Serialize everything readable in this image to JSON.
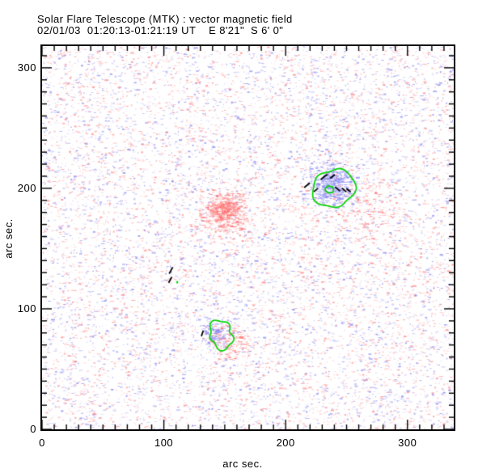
{
  "chart_data": {
    "type": "heatmap",
    "title": "Solar Flare Telescope (MTK) : vector magnetic field",
    "subtitle": "02/01/03  01:20:13-01:21:19 UT    E 8'21\"  S 6' 0\"",
    "xlabel": "arc sec.",
    "ylabel": "arc sec.",
    "xlim": [
      0,
      338
    ],
    "ylim": [
      0,
      318
    ],
    "xticks": [
      0,
      100,
      200,
      300
    ],
    "yticks": [
      0,
      100,
      200,
      300
    ],
    "minor_tick_step": 10,
    "grid": false,
    "frame_color": "#000000",
    "positive_color": "#ff8c8c",
    "positive_strong_color": "#ff6a6a",
    "negative_color": "#8c8cf2",
    "contour_color": "#00d400",
    "dash_color": "#000000",
    "noise": {
      "seed": 1337,
      "count": 11500,
      "positive_fraction": 0.52,
      "clusters": [
        {
          "x": 149,
          "y": 183,
          "sigma": 7,
          "count": 430,
          "polarity": "positive"
        },
        {
          "x": 151,
          "y": 177,
          "sigma": 13,
          "count": 240,
          "polarity": "positive"
        },
        {
          "x": 238,
          "y": 202,
          "sigma": 8,
          "count": 360,
          "polarity": "negative"
        },
        {
          "x": 233,
          "y": 208,
          "sigma": 12,
          "count": 170,
          "polarity": "negative"
        },
        {
          "x": 143,
          "y": 80,
          "sigma": 6,
          "count": 160,
          "polarity": "negative"
        },
        {
          "x": 155,
          "y": 72,
          "sigma": 8,
          "count": 140,
          "polarity": "positive"
        },
        {
          "x": 266,
          "y": 182,
          "sigma": 13,
          "count": 150,
          "polarity": "positive"
        }
      ]
    },
    "contours": [
      {
        "x": 239.5,
        "y": 200.0,
        "radius": 16.5,
        "wobble": 1.5,
        "phase": 0.8
      },
      {
        "x": 236.0,
        "y": 199.0,
        "radius": 3.1,
        "wobble": 0.3,
        "phase": 2.0
      },
      {
        "x": 147.0,
        "y": 78.5,
        "radius": 10.5,
        "wobble": 2.0,
        "phase": 4.1
      }
    ],
    "dashes": [
      {
        "x": 217.5,
        "y": 202.5,
        "angle": 40,
        "len": 6.0
      },
      {
        "x": 224.8,
        "y": 198.6,
        "angle": 40,
        "len": 4.5
      },
      {
        "x": 231.5,
        "y": 209.5,
        "angle": 38,
        "len": 7.0
      },
      {
        "x": 238.5,
        "y": 209.8,
        "angle": 38,
        "len": 5.0
      },
      {
        "x": 242.6,
        "y": 199.4,
        "angle": -40,
        "len": 5.5
      },
      {
        "x": 248.0,
        "y": 198.6,
        "angle": -40,
        "len": 5.0
      },
      {
        "x": 251.6,
        "y": 198.4,
        "angle": -38,
        "len": 4.5
      },
      {
        "x": 105.8,
        "y": 131.8,
        "angle": 62,
        "len": 6.0
      },
      {
        "x": 105.2,
        "y": 124.0,
        "angle": 62,
        "len": 5.5
      },
      {
        "x": 131.6,
        "y": 79.6,
        "angle": 72,
        "len": 5.0
      }
    ],
    "green_dots": [
      {
        "x": 111.0,
        "y": 122.4
      }
    ]
  }
}
